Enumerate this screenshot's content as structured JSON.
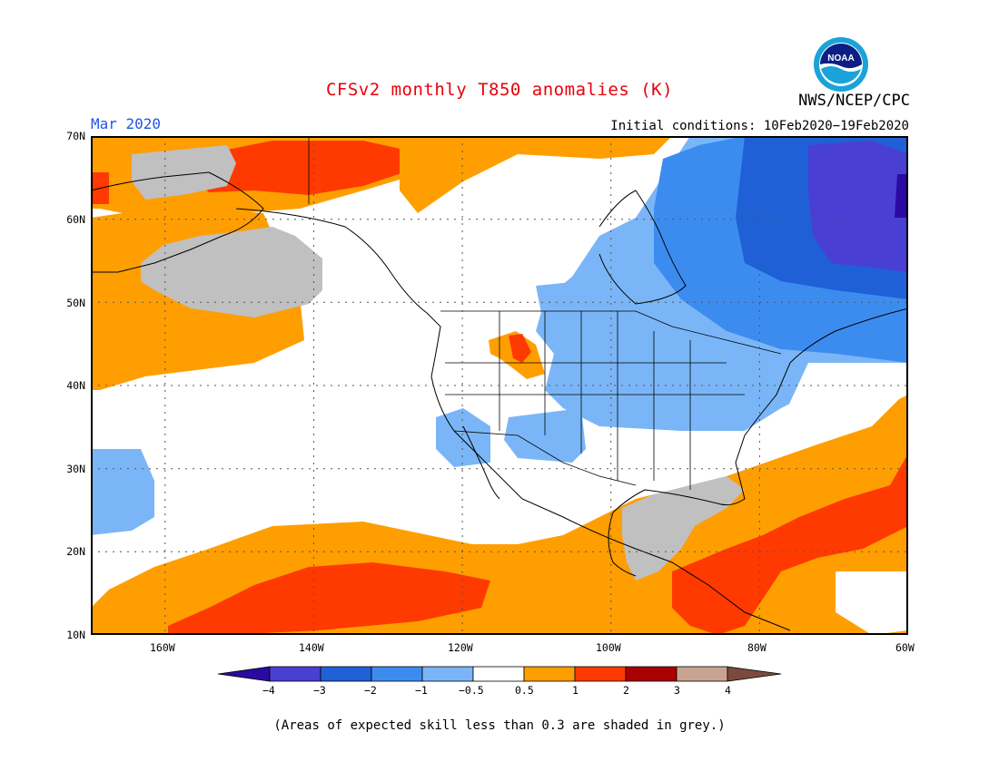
{
  "header": {
    "title": "CFSv2 monthly T850 anomalies (K)",
    "agency": "NWS/NCEP/CPC",
    "logo_text": "NOAA",
    "month": "Mar 2020",
    "initial_conditions": "Initial conditions: 10Feb2020−19Feb2020"
  },
  "map": {
    "region": "North America and eastern North Pacific",
    "projection": "equidistant cylindrical",
    "lon_range": [
      -170,
      -60
    ],
    "lat_range": [
      10,
      70
    ],
    "gridlines": "dotted",
    "lat_labels": [
      "70N",
      "60N",
      "50N",
      "40N",
      "30N",
      "20N",
      "10N"
    ],
    "lon_labels": [
      "160W",
      "140W",
      "120W",
      "100W",
      "80W",
      "60W"
    ],
    "anomaly_regions": [
      {
        "area": "eastern Canada / Labrador",
        "category": "-3 to -2 K (locally below -3 K)"
      },
      {
        "area": "central & eastern Canada, northern Great Lakes",
        "category": "-2 to -1 K"
      },
      {
        "area": "US northern plains, Midwest, Northeast, desert Southwest",
        "category": "-1 to -0.5 K"
      },
      {
        "area": "Alaska / Bering Sea",
        "category": "+0.5 to +2 K with grey low-skill areas"
      },
      {
        "area": "Gulf of Alaska / NE Pacific",
        "category": "+0.5 to +1 K, grey low-skill center"
      },
      {
        "area": "tropical eastern Pacific",
        "category": "+0.5 to +2 K"
      },
      {
        "area": "Gulf of Mexico",
        "category": "grey (skill < 0.3)"
      },
      {
        "area": "Caribbean / subtropical western Atlantic",
        "category": "+1 to +2 K"
      }
    ]
  },
  "colorbar": {
    "labels": [
      "−4",
      "−3",
      "−2",
      "−1",
      "−0.5",
      "0.5",
      "1",
      "2",
      "3",
      "4"
    ],
    "colors": [
      "#2a0aa0",
      "#4a3fd3",
      "#1f60d6",
      "#3c8cf0",
      "#7ab6f7",
      "#ffffff",
      "#ff9e00",
      "#ff3a00",
      "#a90000",
      "#c9a391",
      "#7a4a3c"
    ]
  },
  "footnote": "(Areas of expected skill less than 0.3 are shaded in grey.)"
}
